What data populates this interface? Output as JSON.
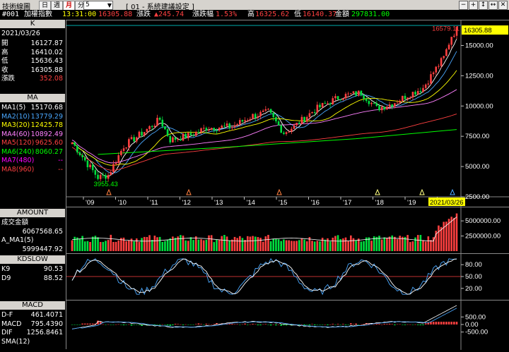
{
  "window": {
    "title": "技術線圖",
    "tabs": [
      "日",
      "週",
      "月",
      "分"
    ],
    "active_tab": "月",
    "period_value": "5",
    "settings_label": "[ 01 - 系統建議設定 ]"
  },
  "window_buttons": [
    "−",
    "+",
    "↕",
    "↔",
    "✕"
  ],
  "info": {
    "id": "#001",
    "name": "加權指數",
    "time": "13:31:00",
    "price": "16305.88",
    "change_label": "漲跌",
    "change_value": "▲245.74",
    "pct_label": "漲跌幅",
    "pct_value": "1.53%",
    "high_label": "高",
    "high_value": "16325.62",
    "low_label": "低",
    "low_value": "16140.37",
    "amount_label": "金額",
    "amount_value": "297831.00"
  },
  "k_panel": {
    "header": "K",
    "date": "2021/03/26",
    "rows": [
      {
        "label": "開",
        "value": "16127.87"
      },
      {
        "label": "高",
        "value": "16410.02"
      },
      {
        "label": "低",
        "value": "15636.43"
      },
      {
        "label": "收",
        "value": "16305.88"
      },
      {
        "label": "漲跌",
        "value": "352.08"
      }
    ]
  },
  "ma_panel": {
    "header": "MA",
    "rows": [
      {
        "label": "MA1(5)",
        "value": "15170.68",
        "color": "#ffffff"
      },
      {
        "label": "MA2(10)",
        "value": "13779.29",
        "color": "#4aa8ff"
      },
      {
        "label": "MA3(20)",
        "value": "12425.78",
        "color": "#ffff00"
      },
      {
        "label": "MA4(60)",
        "value": "10892.49",
        "color": "#ff80ff"
      },
      {
        "label": "MA5(120)",
        "value": "9625.60",
        "color": "#ff4040"
      },
      {
        "label": "MA6(240)",
        "value": "8060.27",
        "color": "#00ff00"
      },
      {
        "label": "MA7(480)",
        "value": "--",
        "color": "#ff00ff"
      },
      {
        "label": "MA8(960)",
        "value": "--",
        "color": "#ff4040"
      }
    ]
  },
  "amount_panel": {
    "header": "AMOUNT",
    "rows": [
      {
        "label": "成交金額",
        "value": ""
      },
      {
        "label": "",
        "value": "6067568.65"
      },
      {
        "label": "A_MA1(5)",
        "value": ""
      },
      {
        "label": "",
        "value": "5999447.92"
      }
    ]
  },
  "kd_panel": {
    "header": "KDSLOW",
    "rows": [
      {
        "label": "K9",
        "value": "90.53"
      },
      {
        "label": "D9",
        "value": "88.52"
      }
    ]
  },
  "macd_panel": {
    "header": "MACD",
    "rows": [
      {
        "label": "D-F",
        "value": "461.4071"
      },
      {
        "label": "MACD",
        "value": "795.4390"
      },
      {
        "label": "DIF",
        "value": "1256.8461"
      },
      {
        "label": "SMA(12)",
        "value": ""
      }
    ]
  },
  "price_chart": {
    "y_ticks": [
      "15000.00",
      "12500.00",
      "10000.00",
      "7500.00",
      "5000.00",
      "2500.00"
    ],
    "x_ticks": [
      "'09",
      "'10",
      "'11",
      "'12",
      "'13",
      "'14",
      "'15",
      "'16",
      "'17",
      "'18",
      "'19",
      "'2"
    ],
    "current_price_tag": "16305.88",
    "max_label": "16579.11",
    "min_label": "3955.43",
    "cursor_date": "2021/03/26"
  },
  "amount_chart": {
    "y_ticks": [
      "5000000.00",
      "2500000.00"
    ]
  },
  "kd_chart": {
    "y_ticks": [
      "80.00",
      "50.00",
      "20.00"
    ]
  },
  "macd_chart": {
    "y_ticks": [
      "500.00",
      "0.00",
      "-500.00"
    ]
  },
  "colors": {
    "up": "#ff4040",
    "down": "#00e040",
    "grid": "#444",
    "axis": "#c0c0c0"
  }
}
